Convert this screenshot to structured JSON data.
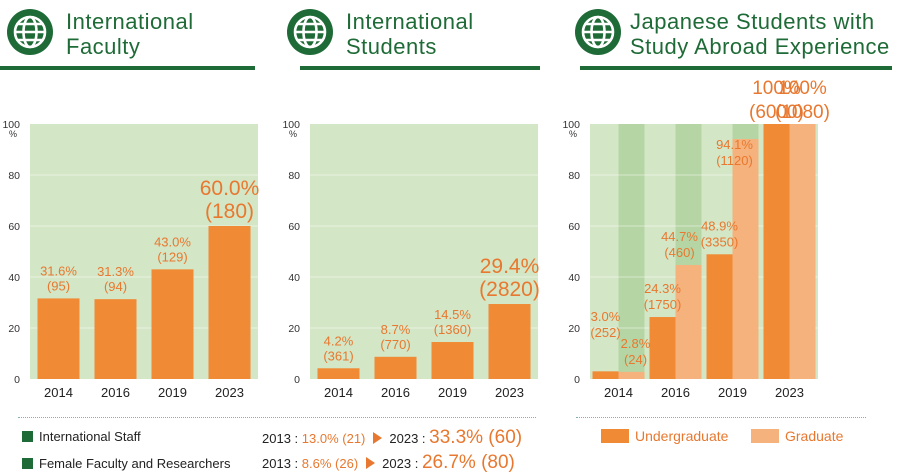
{
  "panels": [
    {
      "title_line1": "International",
      "title_line2": "Faculty"
    },
    {
      "title_line1": "International",
      "title_line2": "Students"
    },
    {
      "title_line1": "Japanese Students with",
      "title_line2": "Study Abroad Experience"
    }
  ],
  "chart_data": [
    {
      "type": "bar",
      "title": "International Faculty",
      "categories": [
        "2014",
        "2016",
        "2019",
        "2023"
      ],
      "values": [
        31.6,
        31.3,
        43.0,
        60.0
      ],
      "labels": [
        [
          "31.6%",
          "(95)"
        ],
        [
          "31.3%",
          "(94)"
        ],
        [
          "43.0%",
          "(129)"
        ],
        [
          "60.0%",
          "(180)"
        ]
      ],
      "ylim": [
        0,
        100
      ],
      "yticks": [
        "0",
        "20",
        "40",
        "60",
        "80",
        "100"
      ],
      "yunit": "%",
      "colors": {
        "bar": "#f08a35",
        "bg": "#d3e6c6",
        "label": "#e8782f"
      }
    },
    {
      "type": "bar",
      "title": "International Students",
      "categories": [
        "2014",
        "2016",
        "2019",
        "2023"
      ],
      "values": [
        4.2,
        8.7,
        14.5,
        29.4
      ],
      "labels": [
        [
          "4.2%",
          "(361)"
        ],
        [
          "8.7%",
          "(770)"
        ],
        [
          "14.5%",
          "(1360)"
        ],
        [
          "29.4%",
          "(2820)"
        ]
      ],
      "ylim": [
        0,
        100
      ],
      "yticks": [
        "0",
        "20",
        "40",
        "60",
        "80",
        "100"
      ],
      "yunit": "%",
      "colors": {
        "bar": "#f08a35",
        "bg": "#d3e6c6",
        "label": "#e8782f"
      }
    },
    {
      "type": "bar",
      "title": "Japanese Students with Study Abroad Experience",
      "categories": [
        "2014",
        "2016",
        "2019",
        "2023"
      ],
      "series": [
        {
          "name": "Undergraduate",
          "values": [
            3.0,
            24.3,
            48.9,
            100
          ],
          "labels": [
            [
              "3.0%",
              "(252)"
            ],
            [
              "24.3%",
              "(1750)"
            ],
            [
              "48.9%",
              "(3350)"
            ],
            [
              "100%",
              "(6000)"
            ]
          ]
        },
        {
          "name": "Graduate",
          "values": [
            2.8,
            44.7,
            94.1,
            100
          ],
          "labels": [
            [
              "2.8%",
              "(24)"
            ],
            [
              "44.7%",
              "(460)"
            ],
            [
              "94.1%",
              "(1120)"
            ],
            [
              "100%",
              "(1080)"
            ]
          ]
        }
      ],
      "ylim": [
        0,
        100
      ],
      "yticks": [
        "0",
        "20",
        "40",
        "60",
        "80",
        "100"
      ],
      "yunit": "%",
      "colors": {
        "undergrad": "#f08a35",
        "grad": "#f6b27c",
        "bg": "#d3e6c6",
        "bg_dark": "#b5d6a4",
        "label": "#e8782f"
      }
    }
  ],
  "stats": [
    {
      "label": "International Staff",
      "y1": "2013 :",
      "v1": "13.0% (21)",
      "y2": "2023 :",
      "v2": "33.3% (60)"
    },
    {
      "label": "Female Faculty and Researchers",
      "y1": "2013 :",
      "v1": "8.6% (26)",
      "y2": "2023 :",
      "v2": "26.7% (80)"
    }
  ],
  "legend": {
    "undergrad": "Undergraduate",
    "grad": "Graduate"
  }
}
